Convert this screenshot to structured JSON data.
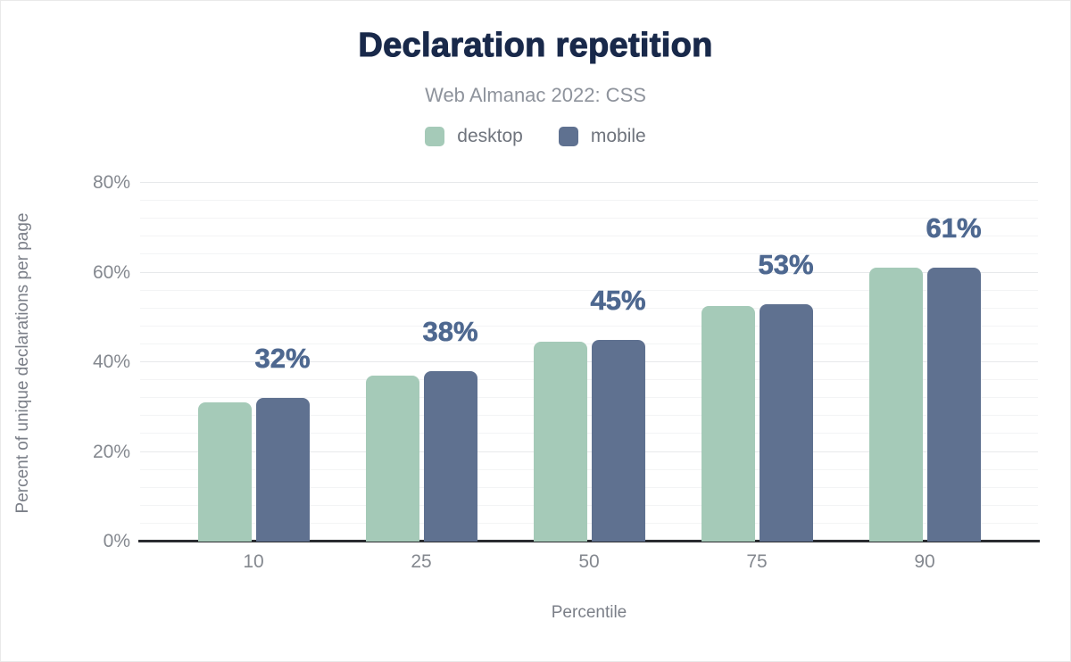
{
  "chart_data": {
    "type": "bar",
    "title": "Declaration repetition",
    "subtitle": "Web Almanac 2022: CSS",
    "categories": [
      "10",
      "25",
      "50",
      "75",
      "90"
    ],
    "series": [
      {
        "name": "desktop",
        "color": "#a5cab8",
        "values": [
          31,
          37,
          44.5,
          52.5,
          61
        ]
      },
      {
        "name": "mobile",
        "color": "#5f7190",
        "values": [
          32,
          38,
          45,
          53,
          61
        ]
      }
    ],
    "data_labels": [
      "32%",
      "38%",
      "45%",
      "53%",
      "61%"
    ],
    "data_label_color": "#4e6890",
    "xlabel": "Percentile",
    "ylabel": "Percent of unique declarations per page",
    "ylim": [
      0,
      80
    ],
    "y_tick_values": [
      0,
      20,
      40,
      60,
      80
    ],
    "y_tick_labels": [
      "0%",
      "20%",
      "40%",
      "60%",
      "80%"
    ],
    "y_minor_tick": 4,
    "y_major_tick": 20,
    "grid": true,
    "legend_position": "top",
    "title_color": "#19294a",
    "subtitle_color": "#8e939c",
    "axis_text_color": "#84888f"
  }
}
